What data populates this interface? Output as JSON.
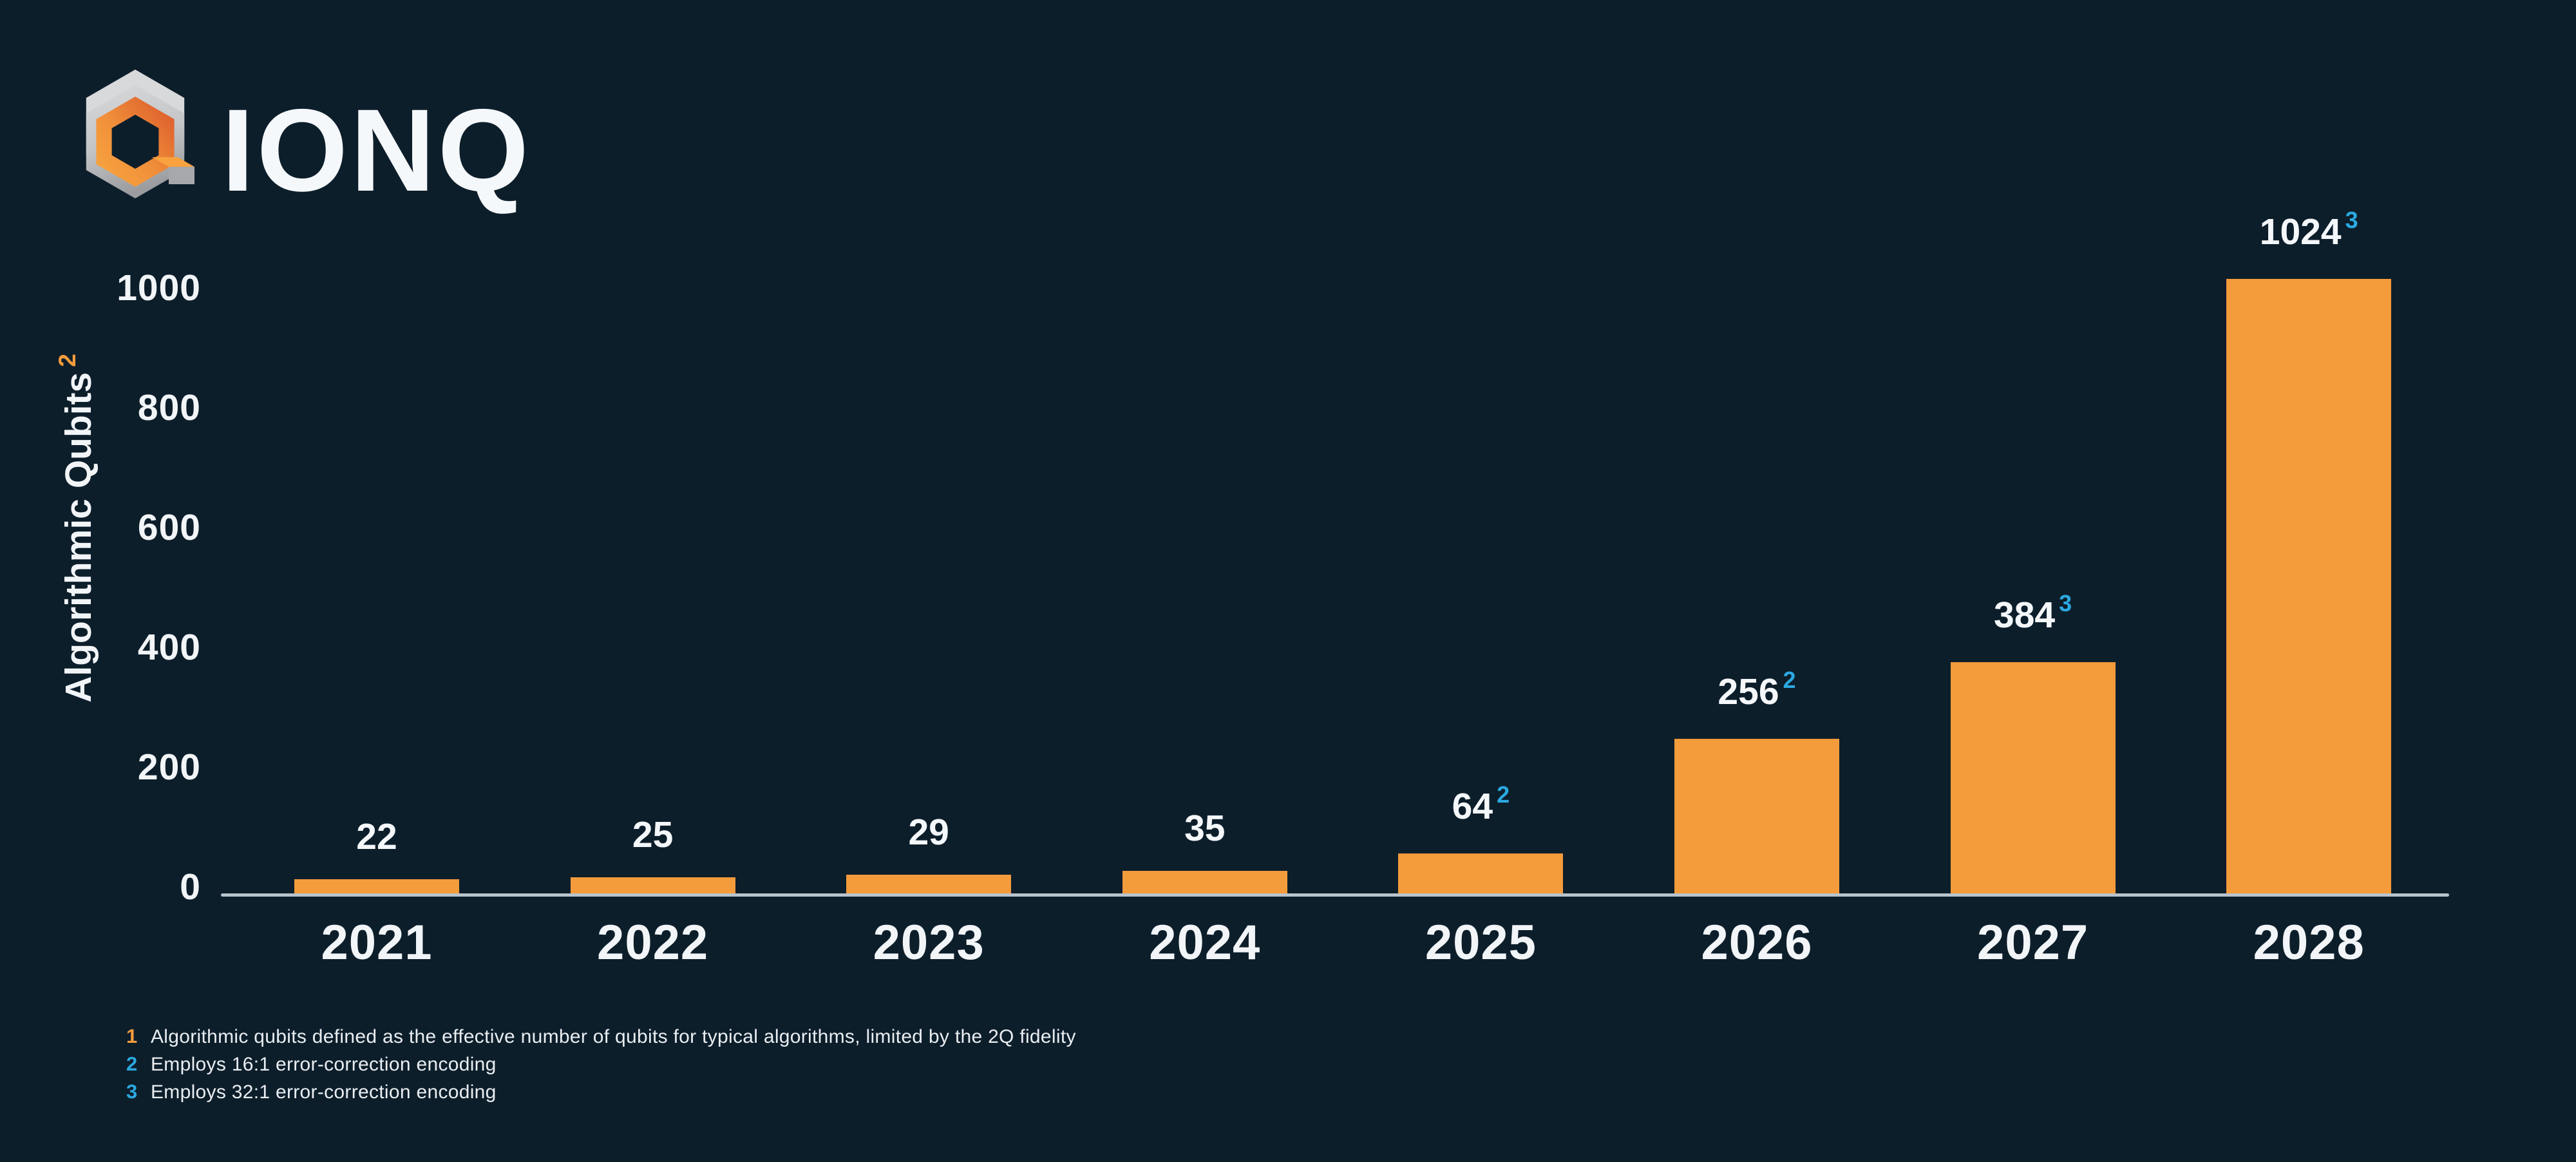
{
  "brand": {
    "name": "IONQ"
  },
  "colors": {
    "background": "#0d1e2b",
    "bar": "#f49b3c",
    "value_superscript": "#2ba9e1",
    "axis_title_superscript": "#f49c3c",
    "axis_line": "#b8c3cc",
    "text": "#f5f8fa",
    "footnote_marker_1": "#f49c3c",
    "footnote_marker_2": "#2ba9e1",
    "footnote_marker_3": "#2ba9e1",
    "logo_gray_light": "#d8d9db",
    "logo_gray_mid": "#b9bbbe",
    "logo_gray_dark": "#989a9d",
    "logo_orange_light": "#f9a840",
    "logo_orange_dark": "#d9542a"
  },
  "chart_data": {
    "type": "bar",
    "title": "",
    "ylabel": "Algorithmic Qubits",
    "ylabel_superscript": "2",
    "categories": [
      "2021",
      "2022",
      "2023",
      "2024",
      "2025",
      "2026",
      "2027",
      "2028"
    ],
    "values": [
      22,
      25,
      29,
      35,
      64,
      256,
      384,
      1024
    ],
    "value_superscripts": [
      "",
      "",
      "",
      "",
      "2",
      "2",
      "3",
      "3"
    ],
    "y_ticks": [
      0,
      200,
      400,
      600,
      800,
      1000
    ],
    "ylim": [
      0,
      1080
    ],
    "grid": false,
    "legend": false,
    "bar_color": "#f49b3c"
  },
  "footnotes": [
    {
      "marker": "1",
      "color": "#f49c3c",
      "text": "Algorithmic qubits defined as the effective number of qubits for typical algorithms, limited by the 2Q fidelity"
    },
    {
      "marker": "2",
      "color": "#2ba9e1",
      "text": "Employs 16:1 error-correction encoding"
    },
    {
      "marker": "3",
      "color": "#2ba9e1",
      "text": "Employs 32:1 error-correction encoding"
    }
  ]
}
